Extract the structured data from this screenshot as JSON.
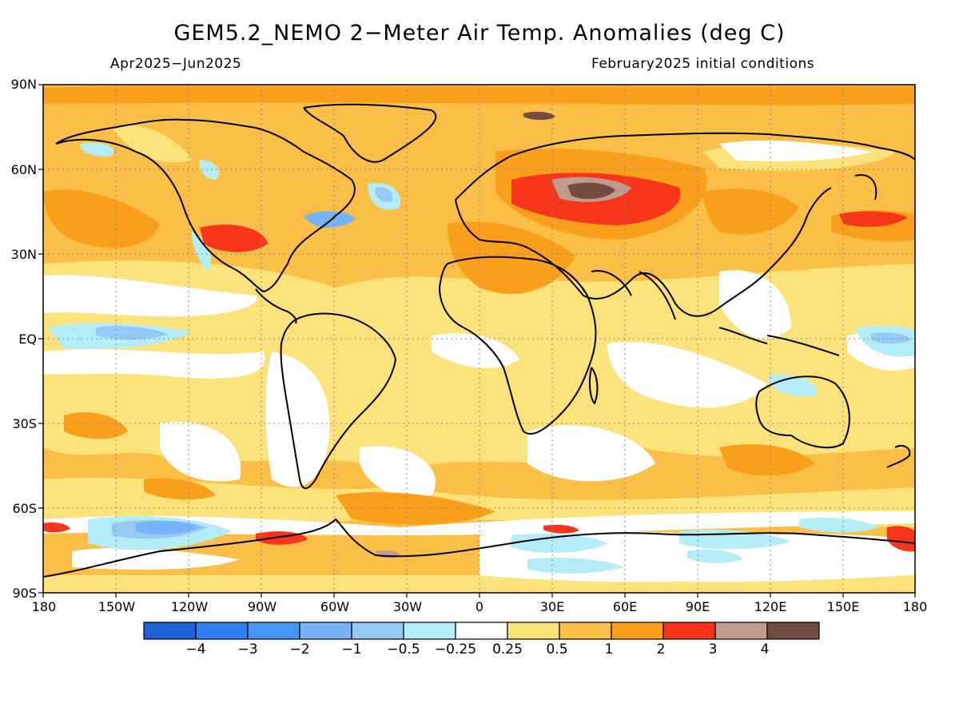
{
  "title": "GEM5.2_NEMO 2−Meter Air Temp. Anomalies (deg C)",
  "period": "Apr2025−Jun2025",
  "init": "February2025 initial conditions",
  "lat_labels": [
    "90N",
    "60N",
    "30N",
    "EQ",
    "30S",
    "60S",
    "90S"
  ],
  "lon_labels": [
    "180",
    "150W",
    "120W",
    "90W",
    "60W",
    "30W",
    "0",
    "30E",
    "60E",
    "90E",
    "120E",
    "150E",
    "180"
  ],
  "colorbar": {
    "colors": [
      "#1f62d6",
      "#2e7ff0",
      "#4596f6",
      "#78b2f7",
      "#96c9f5",
      "#b4ecf7",
      "#ffffff",
      "#fce27a",
      "#fbbf47",
      "#f99f1c",
      "#f7351a",
      "#c29b8f",
      "#744b40"
    ],
    "labels": [
      "−4",
      "−3",
      "−2",
      "−1",
      "−0.5",
      "−0.25",
      "0.25",
      "0.5",
      "1",
      "2",
      "3",
      "4"
    ]
  },
  "colors": {
    "land_outline": "#000000",
    "base_warm": "#fbbf47"
  }
}
